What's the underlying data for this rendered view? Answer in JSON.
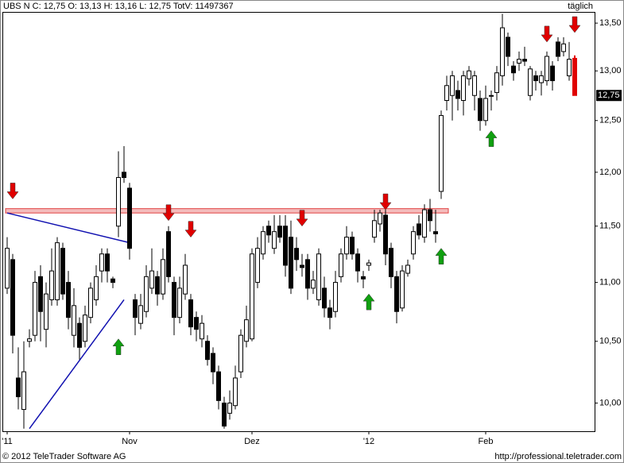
{
  "chart_data": {
    "type": "candlestick",
    "title": "UBS N C: 12,75 O: 13,13 H: 13,16 L: 12,75 TotV: 11497367",
    "interval": "täglich",
    "copyright": "© 2012 TeleTrader Software AG",
    "source": "http://professional.teletrader.com",
    "log_scale": true,
    "categories": [
      "'11",
      null,
      null,
      null,
      null,
      null,
      null,
      null,
      null,
      null,
      null,
      null,
      null,
      null,
      null,
      null,
      null,
      null,
      null,
      null,
      null,
      null,
      "Nov",
      null,
      null,
      null,
      null,
      null,
      null,
      null,
      null,
      null,
      null,
      null,
      null,
      null,
      null,
      null,
      null,
      null,
      null,
      null,
      null,
      null,
      "Dez",
      null,
      null,
      null,
      null,
      null,
      null,
      null,
      null,
      null,
      null,
      null,
      null,
      null,
      null,
      null,
      null,
      null,
      null,
      null,
      null,
      "'12",
      null,
      null,
      null,
      null,
      null,
      null,
      null,
      null,
      null,
      null,
      null,
      null,
      null,
      null,
      null,
      null,
      null,
      null,
      null,
      null,
      "Feb",
      null,
      null,
      null,
      null,
      null,
      null,
      null,
      null,
      null,
      null,
      null,
      null,
      null,
      null,
      null,
      null
    ],
    "open": [
      10.95,
      11.2,
      10.2,
      9.95,
      10.5,
      10.55,
      11.05,
      10.6,
      10.85,
      10.85,
      11.3,
      11.0,
      10.55,
      10.65,
      10.5,
      10.7,
      10.85,
      11.1,
      11.25,
      11.03,
      11.5,
      12.0,
      11.85,
      10.85,
      10.65,
      10.75,
      10.95,
      11.05,
      10.9,
      11.45,
      11.0,
      10.7,
      10.9,
      10.85,
      10.7,
      10.52,
      10.5,
      10.4,
      10.25,
      10.0,
      9.92,
      9.98,
      10.25,
      10.5,
      10.52,
      11.0,
      11.25,
      11.5,
      11.3,
      11.5,
      11.5,
      11.4,
      11.3,
      11.15,
      11.2,
      10.95,
      10.85,
      10.95,
      10.78,
      10.75,
      11.05,
      11.25,
      11.4,
      11.25,
      11.05,
      11.15,
      11.4,
      11.52,
      11.6,
      11.3,
      11.05,
      10.78,
      11.08,
      11.25,
      11.52,
      11.4,
      11.65,
      11.45,
      11.82,
      12.7,
      12.75,
      12.8,
      12.7,
      12.92,
      12.75,
      12.72,
      12.5,
      12.75,
      12.78,
      12.95,
      13.35,
      13.05,
      13.08,
      13.12,
      12.75,
      12.95,
      12.88,
      12.9,
      13.05,
      13.3,
      13.2,
      12.95,
      13.13
    ],
    "high": [
      11.4,
      11.25,
      10.45,
      10.5,
      10.6,
      11.1,
      11.15,
      11.0,
      11.3,
      11.4,
      11.35,
      11.1,
      10.95,
      10.7,
      10.8,
      11.0,
      11.15,
      11.3,
      11.3,
      11.05,
      12.2,
      12.25,
      11.9,
      10.9,
      10.9,
      11.15,
      11.3,
      11.1,
      11.3,
      11.5,
      11.05,
      11.05,
      11.25,
      10.9,
      10.75,
      10.72,
      10.55,
      10.45,
      10.3,
      10.05,
      10.1,
      10.3,
      10.6,
      10.8,
      11.3,
      11.4,
      11.5,
      11.55,
      11.6,
      11.6,
      11.6,
      11.55,
      11.4,
      11.25,
      11.25,
      11.1,
      11.3,
      11.05,
      10.85,
      11.1,
      11.3,
      11.5,
      11.45,
      11.3,
      11.1,
      11.2,
      11.65,
      11.65,
      11.65,
      11.35,
      11.1,
      11.15,
      11.2,
      11.5,
      11.6,
      11.7,
      11.75,
      11.65,
      12.6,
      12.95,
      13.0,
      12.9,
      13.0,
      13.05,
      13.0,
      12.8,
      12.85,
      12.8,
      13.05,
      13.6,
      13.4,
      13.1,
      13.2,
      13.25,
      13.05,
      13.0,
      13.0,
      13.2,
      13.1,
      13.35,
      13.35,
      13.3,
      13.16
    ],
    "low": [
      10.9,
      10.4,
      9.95,
      9.8,
      10.45,
      10.5,
      10.5,
      10.45,
      10.8,
      10.8,
      10.85,
      10.6,
      10.45,
      10.35,
      10.45,
      10.65,
      10.8,
      11.0,
      11.0,
      10.95,
      11.4,
      11.9,
      11.2,
      10.55,
      10.6,
      10.7,
      10.9,
      10.8,
      10.85,
      11.0,
      10.55,
      10.65,
      10.85,
      10.55,
      10.5,
      10.45,
      10.3,
      10.15,
      9.95,
      9.8,
      9.87,
      9.95,
      10.2,
      10.45,
      10.5,
      10.95,
      11.2,
      11.35,
      11.25,
      11.35,
      11.05,
      10.9,
      11.1,
      11.05,
      10.85,
      10.9,
      10.8,
      10.7,
      10.6,
      10.7,
      11.0,
      11.2,
      11.2,
      11.0,
      10.95,
      11.1,
      11.35,
      11.45,
      11.15,
      10.95,
      10.65,
      10.75,
      11.05,
      11.2,
      11.38,
      11.35,
      11.45,
      11.35,
      11.75,
      12.6,
      12.5,
      12.6,
      12.55,
      12.85,
      12.6,
      12.4,
      12.45,
      12.6,
      12.7,
      12.85,
      13.05,
      12.9,
      13.0,
      13.05,
      12.7,
      12.8,
      12.75,
      12.85,
      12.8,
      13.1,
      13.15,
      12.9,
      12.75
    ],
    "close": [
      11.3,
      10.55,
      10.05,
      10.25,
      10.52,
      11.0,
      10.75,
      10.9,
      11.1,
      11.35,
      10.9,
      10.7,
      10.8,
      10.45,
      10.72,
      10.95,
      11.05,
      11.25,
      11.1,
      11.0,
      11.95,
      11.95,
      11.3,
      10.7,
      10.8,
      11.05,
      11.1,
      10.9,
      11.2,
      11.05,
      10.7,
      10.95,
      11.15,
      10.62,
      10.6,
      10.65,
      10.35,
      10.25,
      10.02,
      9.82,
      10.0,
      10.2,
      10.55,
      10.68,
      11.25,
      11.3,
      11.45,
      11.42,
      11.45,
      11.4,
      11.15,
      10.95,
      11.2,
      11.13,
      10.95,
      11.02,
      11.25,
      10.78,
      10.7,
      11.0,
      11.25,
      11.4,
      11.25,
      11.1,
      11.03,
      11.17,
      11.55,
      11.62,
      11.25,
      11.05,
      10.75,
      11.1,
      11.15,
      11.45,
      11.42,
      11.65,
      11.55,
      11.43,
      12.55,
      12.85,
      12.95,
      12.72,
      12.95,
      13.0,
      12.95,
      12.5,
      12.72,
      12.75,
      12.98,
      13.45,
      13.15,
      12.98,
      13.12,
      13.1,
      13.02,
      12.9,
      12.95,
      13.15,
      12.9,
      13.15,
      13.28,
      13.12,
      12.75
    ],
    "colors": {
      "up": "#ffffff",
      "down": "#000000",
      "last": "#e00000",
      "outline": "#000000"
    },
    "ylim": [
      9.78,
      13.62
    ],
    "yticks": [
      {
        "value": 10.0,
        "label": "10,00"
      },
      {
        "value": 10.5,
        "label": "10,50"
      },
      {
        "value": 11.0,
        "label": "11,00"
      },
      {
        "value": 11.5,
        "label": "11,50"
      },
      {
        "value": 12.0,
        "label": "12,00"
      },
      {
        "value": 12.5,
        "label": "12,50"
      },
      {
        "value": 13.0,
        "label": "13,00"
      },
      {
        "value": 13.5,
        "label": "13,50"
      }
    ],
    "last_price": {
      "value": 12.75,
      "label": "12,75"
    },
    "trend_lines": [
      {
        "start": [
          0,
          11.62
        ],
        "end": [
          22,
          11.35
        ],
        "color": "#1010b0"
      },
      {
        "start": [
          4,
          9.8
        ],
        "end": [
          21,
          10.85
        ],
        "color": "#1010b0"
      }
    ],
    "resistance_band": {
      "low": 11.62,
      "high": 11.66,
      "start": 0,
      "end": 79,
      "color": "#e04040"
    },
    "signals": [
      {
        "index": 1,
        "price": 11.75,
        "direction": "down",
        "color": "#e00000"
      },
      {
        "index": 29,
        "price": 11.55,
        "direction": "down",
        "color": "#e00000"
      },
      {
        "index": 33,
        "price": 11.4,
        "direction": "down",
        "color": "#e00000"
      },
      {
        "index": 53,
        "price": 11.5,
        "direction": "down",
        "color": "#e00000"
      },
      {
        "index": 68,
        "price": 11.65,
        "direction": "down",
        "color": "#e00000"
      },
      {
        "index": 97,
        "price": 13.3,
        "direction": "down",
        "color": "#e00000"
      },
      {
        "index": 102,
        "price": 13.4,
        "direction": "down",
        "color": "#e00000"
      },
      {
        "index": 20,
        "price": 10.52,
        "direction": "up",
        "color": "#10a010"
      },
      {
        "index": 65,
        "price": 10.9,
        "direction": "up",
        "color": "#10a010"
      },
      {
        "index": 78,
        "price": 11.3,
        "direction": "up",
        "color": "#10a010"
      },
      {
        "index": 87,
        "price": 12.4,
        "direction": "up",
        "color": "#10a010"
      }
    ]
  }
}
